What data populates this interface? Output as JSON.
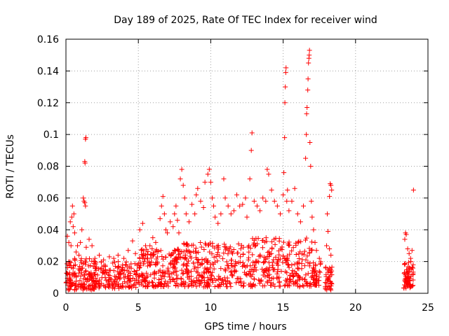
{
  "chart_data": {
    "type": "scatter",
    "title": "Day 189 of 2025, Rate Of TEC Index for receiver wind",
    "xlabel": "GPS time / hours",
    "ylabel": "ROTI / TECUs",
    "xlim": [
      0,
      25
    ],
    "ylim": [
      0,
      0.16
    ],
    "x_ticks": [
      0,
      5,
      10,
      15,
      20,
      25
    ],
    "x_tick_labels": [
      "0",
      "5",
      "10",
      "15",
      "20",
      "25"
    ],
    "y_ticks": [
      0,
      0.02,
      0.04,
      0.06,
      0.08,
      0.1,
      0.12,
      0.14,
      0.16
    ],
    "y_tick_labels": [
      "0",
      "0.02",
      "0.04",
      "0.06",
      "0.08",
      "0.1",
      "0.12",
      "0.14",
      "0.16"
    ],
    "grid": true,
    "marker": "+",
    "marker_color": "#ff0000",
    "density_bands": [
      {
        "x_start": 0.0,
        "x_end": 2.0,
        "y_min": 0.002,
        "y_max": 0.022,
        "count": 150
      },
      {
        "x_start": 2.0,
        "x_end": 5.0,
        "y_min": 0.003,
        "y_max": 0.02,
        "count": 160
      },
      {
        "x_start": 5.0,
        "x_end": 8.0,
        "y_min": 0.004,
        "y_max": 0.028,
        "count": 200
      },
      {
        "x_start": 8.0,
        "x_end": 12.0,
        "y_min": 0.004,
        "y_max": 0.032,
        "count": 240
      },
      {
        "x_start": 12.0,
        "x_end": 17.0,
        "y_min": 0.004,
        "y_max": 0.035,
        "count": 280
      },
      {
        "x_start": 17.0,
        "x_end": 17.6,
        "y_min": 0.005,
        "y_max": 0.02,
        "count": 40
      },
      {
        "x_start": 17.9,
        "x_end": 18.4,
        "y_min": 0.002,
        "y_max": 0.018,
        "count": 40
      },
      {
        "x_start": 23.3,
        "x_end": 24.0,
        "y_min": 0.003,
        "y_max": 0.02,
        "count": 70
      }
    ],
    "series": [
      {
        "points": [
          [
            0.1,
            0.036
          ],
          [
            0.2,
            0.032
          ],
          [
            0.3,
            0.045
          ],
          [
            0.35,
            0.03
          ],
          [
            0.4,
            0.048
          ],
          [
            0.45,
            0.055
          ],
          [
            0.5,
            0.042
          ],
          [
            0.55,
            0.05
          ],
          [
            0.6,
            0.038
          ],
          [
            0.7,
            0.026
          ],
          [
            0.8,
            0.03
          ],
          [
            0.9,
            0.024
          ],
          [
            1.0,
            0.032
          ],
          [
            1.1,
            0.04
          ],
          [
            1.2,
            0.06
          ],
          [
            1.25,
            0.058
          ],
          [
            1.3,
            0.057
          ],
          [
            1.35,
            0.055
          ],
          [
            1.3,
            0.083
          ],
          [
            1.32,
            0.082
          ],
          [
            1.35,
            0.097
          ],
          [
            1.38,
            0.098
          ],
          [
            1.4,
            0.029
          ],
          [
            1.6,
            0.034
          ],
          [
            1.8,
            0.03
          ],
          [
            2.0,
            0.022
          ],
          [
            2.3,
            0.024
          ],
          [
            2.6,
            0.021
          ],
          [
            3.0,
            0.023
          ],
          [
            3.3,
            0.022
          ],
          [
            3.6,
            0.024
          ],
          [
            4.0,
            0.022
          ],
          [
            4.3,
            0.027
          ],
          [
            4.6,
            0.033
          ],
          [
            4.8,
            0.025
          ],
          [
            5.1,
            0.04
          ],
          [
            5.3,
            0.044
          ],
          [
            5.5,
            0.03
          ],
          [
            5.8,
            0.03
          ],
          [
            6.0,
            0.035
          ],
          [
            6.2,
            0.032
          ],
          [
            6.5,
            0.047
          ],
          [
            6.6,
            0.055
          ],
          [
            6.7,
            0.061
          ],
          [
            6.8,
            0.05
          ],
          [
            6.9,
            0.04
          ],
          [
            7.0,
            0.038
          ],
          [
            7.2,
            0.045
          ],
          [
            7.4,
            0.042
          ],
          [
            7.5,
            0.05
          ],
          [
            7.6,
            0.055
          ],
          [
            7.7,
            0.046
          ],
          [
            7.8,
            0.038
          ],
          [
            7.9,
            0.072
          ],
          [
            8.0,
            0.078
          ],
          [
            8.1,
            0.068
          ],
          [
            8.2,
            0.06
          ],
          [
            8.3,
            0.05
          ],
          [
            8.5,
            0.045
          ],
          [
            8.7,
            0.056
          ],
          [
            8.9,
            0.05
          ],
          [
            9.0,
            0.062
          ],
          [
            9.1,
            0.066
          ],
          [
            9.3,
            0.058
          ],
          [
            9.5,
            0.054
          ],
          [
            9.6,
            0.07
          ],
          [
            9.8,
            0.075
          ],
          [
            9.9,
            0.078
          ],
          [
            10.0,
            0.07
          ],
          [
            10.1,
            0.06
          ],
          [
            10.2,
            0.055
          ],
          [
            10.3,
            0.048
          ],
          [
            10.5,
            0.044
          ],
          [
            10.7,
            0.05
          ],
          [
            10.9,
            0.072
          ],
          [
            11.0,
            0.06
          ],
          [
            11.2,
            0.055
          ],
          [
            11.4,
            0.05
          ],
          [
            11.6,
            0.052
          ],
          [
            11.8,
            0.062
          ],
          [
            12.0,
            0.055
          ],
          [
            12.2,
            0.056
          ],
          [
            12.4,
            0.06
          ],
          [
            12.5,
            0.048
          ],
          [
            12.7,
            0.072
          ],
          [
            12.8,
            0.09
          ],
          [
            12.85,
            0.101
          ],
          [
            13.0,
            0.058
          ],
          [
            13.2,
            0.055
          ],
          [
            13.4,
            0.052
          ],
          [
            13.6,
            0.06
          ],
          [
            13.8,
            0.058
          ],
          [
            13.9,
            0.078
          ],
          [
            14.0,
            0.075
          ],
          [
            14.2,
            0.065
          ],
          [
            14.4,
            0.058
          ],
          [
            14.6,
            0.055
          ],
          [
            14.8,
            0.05
          ],
          [
            15.0,
            0.062
          ],
          [
            15.05,
            0.076
          ],
          [
            15.1,
            0.098
          ],
          [
            15.12,
            0.12
          ],
          [
            15.15,
            0.13
          ],
          [
            15.18,
            0.139
          ],
          [
            15.2,
            0.142
          ],
          [
            15.25,
            0.058
          ],
          [
            15.3,
            0.065
          ],
          [
            15.4,
            0.052
          ],
          [
            15.6,
            0.058
          ],
          [
            15.8,
            0.066
          ],
          [
            16.0,
            0.05
          ],
          [
            16.2,
            0.045
          ],
          [
            16.4,
            0.055
          ],
          [
            16.55,
            0.085
          ],
          [
            16.6,
            0.1
          ],
          [
            16.62,
            0.113
          ],
          [
            16.65,
            0.117
          ],
          [
            16.7,
            0.128
          ],
          [
            16.72,
            0.135
          ],
          [
            16.75,
            0.145
          ],
          [
            16.78,
            0.148
          ],
          [
            16.8,
            0.15
          ],
          [
            16.82,
            0.153
          ],
          [
            16.85,
            0.095
          ],
          [
            16.9,
            0.08
          ],
          [
            16.95,
            0.058
          ],
          [
            17.0,
            0.048
          ],
          [
            17.1,
            0.04
          ],
          [
            17.2,
            0.032
          ],
          [
            17.3,
            0.027
          ],
          [
            17.5,
            0.022
          ],
          [
            18.0,
            0.03
          ],
          [
            18.1,
            0.039
          ],
          [
            18.2,
            0.061
          ],
          [
            18.25,
            0.069
          ],
          [
            18.3,
            0.068
          ],
          [
            18.35,
            0.065
          ],
          [
            18.05,
            0.05
          ],
          [
            18.2,
            0.028
          ],
          [
            18.3,
            0.024
          ],
          [
            23.4,
            0.034
          ],
          [
            23.45,
            0.038
          ],
          [
            23.5,
            0.037
          ],
          [
            23.6,
            0.028
          ],
          [
            23.7,
            0.025
          ],
          [
            23.8,
            0.022
          ],
          [
            23.9,
            0.027
          ],
          [
            24.0,
            0.065
          ]
        ]
      }
    ]
  }
}
